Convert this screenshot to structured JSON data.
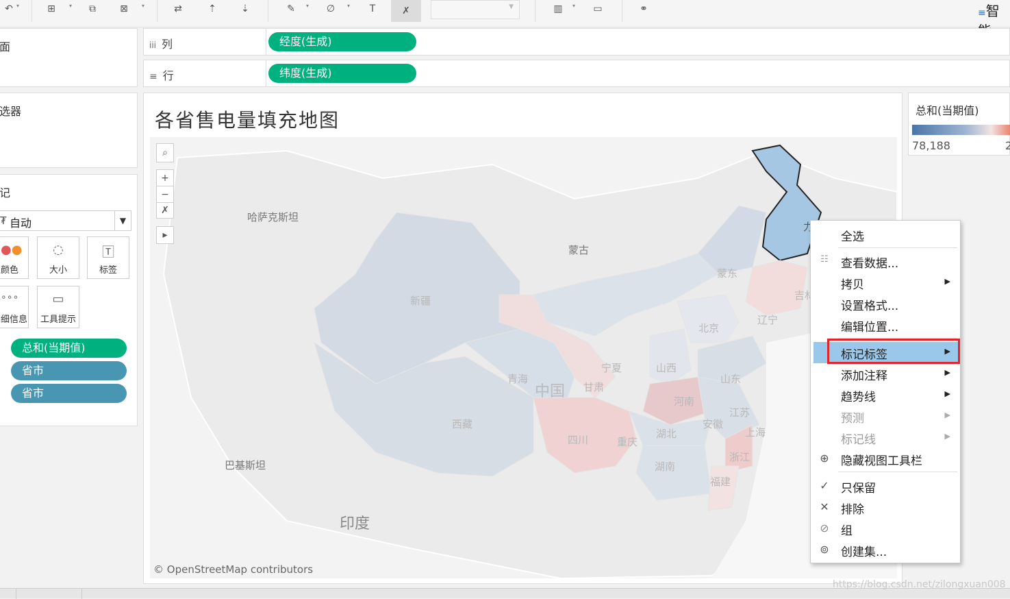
{
  "toolbar": {
    "icons": [
      "undo-icon",
      "new-sheet-icon",
      "duplicate-icon",
      "clear-sheet-icon",
      "swap-icon",
      "sort-asc-icon",
      "sort-desc-icon",
      "highlight-icon",
      "attach-icon",
      "label-icon",
      "fix-axes-icon",
      "fit-icon",
      "show-me-icon",
      "presentation-icon",
      "share-icon"
    ],
    "top_right_label": "智能"
  },
  "left": {
    "pages_title": "面",
    "filters_title": "选器",
    "marks_title": "记",
    "mark_type": "自动",
    "cards": [
      {
        "label": "颜色",
        "icon": "color-icon"
      },
      {
        "label": "大小",
        "icon": "size-icon"
      },
      {
        "label": "标签",
        "icon": "label-icon"
      },
      {
        "label": "细信息",
        "icon": "detail-icon"
      },
      {
        "label": "工具提示",
        "icon": "tooltip-icon"
      }
    ],
    "mark_pills": [
      {
        "label": "总和(当期值)",
        "color": "#00b180"
      },
      {
        "label": "省市",
        "color": "#4996b2"
      },
      {
        "label": "省市",
        "color": "#4996b2"
      }
    ]
  },
  "shelves": {
    "columns_label": "列",
    "columns_pill": "经度(生成)",
    "rows_label": "行",
    "rows_pill": "纬度(生成)"
  },
  "viz": {
    "title": "各省售电量填充地图",
    "map_labels": {
      "kazakhstan": "哈萨克斯坦",
      "mongolia": "蒙古",
      "pakistan": "巴基斯坦",
      "india": "印度",
      "china": "中国",
      "xinjiang": "新疆",
      "qinghai": "青海",
      "gansu": "甘肃",
      "ningxia": "宁夏",
      "tibet": "西藏",
      "sichuan": "四川",
      "chongqing": "重庆",
      "shanxi": "山西",
      "henan": "河南",
      "hubei": "湖北",
      "hunan": "湖南",
      "anhui": "安徽",
      "jiangsu": "江苏",
      "shanghai": "上海",
      "zhejiang": "浙江",
      "fujian": "福建",
      "shandong": "山东",
      "beijing": "北京",
      "liaoning": "辽宁",
      "jilin": "吉林",
      "mengdong": "蒙东",
      "heilongjiang": "力"
    },
    "attribution": "© OpenStreetMap contributors"
  },
  "legend": {
    "title": "总和(当期值)",
    "min": "78,188",
    "max": "2"
  },
  "context_menu": {
    "items": [
      {
        "label": "全选",
        "icon": "",
        "submenu": false,
        "disabled": false
      },
      {
        "label": "查看数据...",
        "icon": "view-data-icon",
        "submenu": false,
        "disabled": false
      },
      {
        "label": "拷贝",
        "icon": "",
        "submenu": true,
        "disabled": false
      },
      {
        "label": "设置格式...",
        "icon": "",
        "submenu": false,
        "disabled": false
      },
      {
        "label": "编辑位置...",
        "icon": "",
        "submenu": false,
        "disabled": false
      },
      {
        "label": "标记标签",
        "icon": "",
        "submenu": true,
        "disabled": false,
        "highlighted": true
      },
      {
        "label": "添加注释",
        "icon": "",
        "submenu": true,
        "disabled": false
      },
      {
        "label": "趋势线",
        "icon": "",
        "submenu": true,
        "disabled": false
      },
      {
        "label": "预测",
        "icon": "",
        "submenu": true,
        "disabled": true
      },
      {
        "label": "标记线",
        "icon": "",
        "submenu": true,
        "disabled": true
      },
      {
        "label": "隐藏视图工具栏",
        "icon": "zoom-icon",
        "submenu": false,
        "disabled": false
      },
      {
        "label": "只保留",
        "icon": "check-icon",
        "submenu": false,
        "disabled": false
      },
      {
        "label": "排除",
        "icon": "close-icon",
        "submenu": false,
        "disabled": false
      },
      {
        "label": "组",
        "icon": "paperclip-icon",
        "submenu": false,
        "disabled": false
      },
      {
        "label": "创建集...",
        "icon": "set-icon",
        "submenu": false,
        "disabled": false
      }
    ]
  },
  "watermark": "https://blog.csdn.net/zilongxuan008"
}
